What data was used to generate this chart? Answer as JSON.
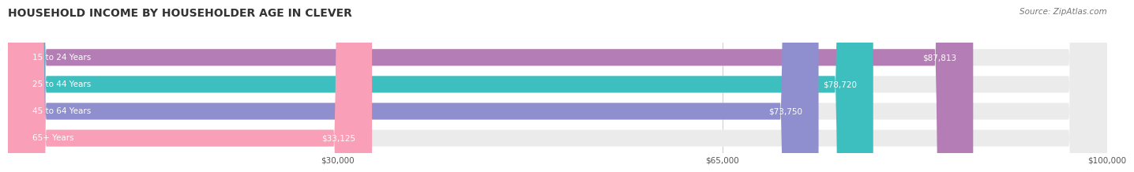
{
  "title": "HOUSEHOLD INCOME BY HOUSEHOLDER AGE IN CLEVER",
  "source": "Source: ZipAtlas.com",
  "categories": [
    "15 to 24 Years",
    "25 to 44 Years",
    "45 to 64 Years",
    "65+ Years"
  ],
  "values": [
    87813,
    78720,
    73750,
    33125
  ],
  "labels": [
    "$87,813",
    "$78,720",
    "$73,750",
    "$33,125"
  ],
  "bar_colors": [
    "#b57db5",
    "#3dbfbf",
    "#8f8fcf",
    "#f9a0b8"
  ],
  "bar_bg_color": "#ebebeb",
  "xmax": 100000,
  "xticks": [
    30000,
    65000,
    100000
  ],
  "xtick_labels": [
    "$30,000",
    "$65,000",
    "$100,000"
  ],
  "title_fontsize": 10,
  "source_fontsize": 7.5,
  "label_fontsize": 7.5,
  "cat_fontsize": 7.5,
  "background_color": "#ffffff"
}
